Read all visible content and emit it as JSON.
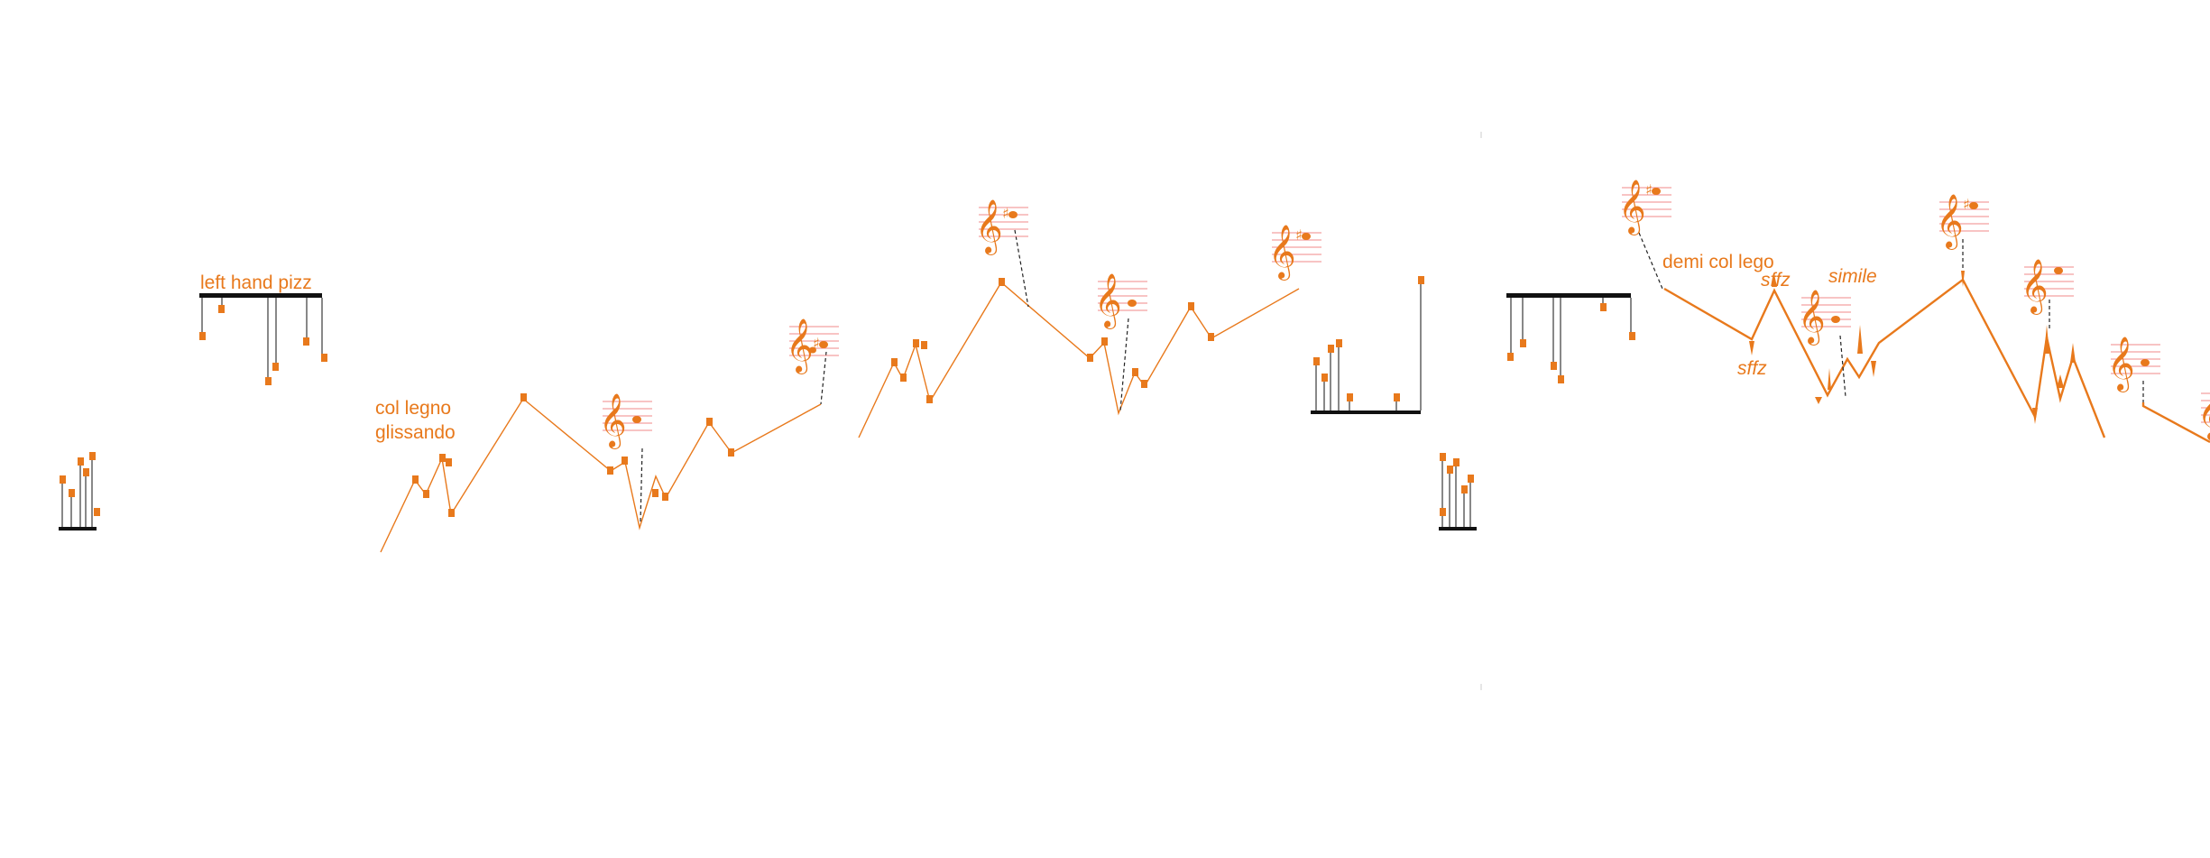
{
  "colors": {
    "accent": "#e8791c",
    "staff": "#f08a8a",
    "ink": "#111111",
    "background": "#ffffff"
  },
  "annotations": {
    "left_hand_pizz": "left hand pizz",
    "col_legno": "col legno",
    "glissando": "glissando",
    "demi_col_lego": "demi col lego",
    "sffz_upper": "sffz",
    "sffz_lower": "sffz",
    "simile": "simile"
  },
  "icons": {
    "clef": "treble-clef-icon",
    "sharp": "sharp-icon",
    "notehead": "notehead-icon"
  }
}
